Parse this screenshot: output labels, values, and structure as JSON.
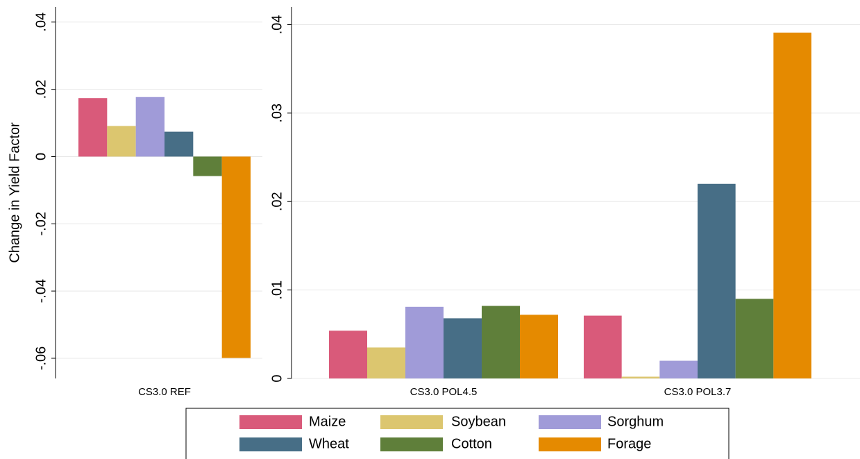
{
  "chart_data": [
    {
      "type": "bar",
      "y_label": "Change in Yield Factor",
      "categories": [
        "CS3.0 REF"
      ],
      "series": [
        {
          "name": "Maize",
          "color": "#d95a7a",
          "values": [
            0.0174
          ]
        },
        {
          "name": "Soybean",
          "color": "#dcc66f",
          "values": [
            0.0091
          ]
        },
        {
          "name": "Sorghum",
          "color": "#a09bd8",
          "values": [
            0.0177
          ]
        },
        {
          "name": "Wheat",
          "color": "#476e86",
          "values": [
            0.0074
          ]
        },
        {
          "name": "Cotton",
          "color": "#5f7f3a",
          "values": [
            -0.0058
          ]
        },
        {
          "name": "Forage",
          "color": "#e58a00",
          "values": [
            -0.0599
          ]
        }
      ],
      "ylim": [
        -0.066,
        0.0445
      ],
      "yticks": [
        {
          "value": -0.06,
          "label": "-.06"
        },
        {
          "value": -0.04,
          "label": "-.04"
        },
        {
          "value": -0.02,
          "label": "-.02"
        },
        0,
        {
          "value": 0.02,
          "label": ".02"
        },
        {
          "value": 0.04,
          "label": ".04"
        }
      ],
      "grid": true
    },
    {
      "type": "bar",
      "categories": [
        "CS3.0 POL4.5",
        "CS3.0 POL3.7"
      ],
      "series": [
        {
          "name": "Maize",
          "color": "#d95a7a",
          "values": [
            0.0054,
            0.0071
          ]
        },
        {
          "name": "Soybean",
          "color": "#dcc66f",
          "values": [
            0.0035,
            0.0002
          ]
        },
        {
          "name": "Sorghum",
          "color": "#a09bd8",
          "values": [
            0.0081,
            0.002
          ]
        },
        {
          "name": "Wheat",
          "color": "#476e86",
          "values": [
            0.0068,
            0.022
          ]
        },
        {
          "name": "Cotton",
          "color": "#5f7f3a",
          "values": [
            0.0082,
            0.009
          ]
        },
        {
          "name": "Forage",
          "color": "#e58a00",
          "values": [
            0.0072,
            0.0391
          ]
        }
      ],
      "ylim": [
        0,
        0.042
      ],
      "yticks": [
        0,
        {
          "value": 0.01,
          "label": ".01"
        },
        {
          "value": 0.02,
          "label": ".02"
        },
        {
          "value": 0.03,
          "label": ".03"
        },
        {
          "value": 0.04,
          "label": ".04"
        }
      ],
      "grid": true
    }
  ]
}
